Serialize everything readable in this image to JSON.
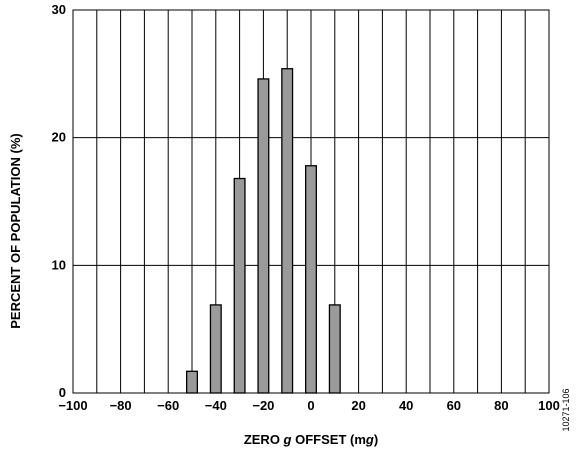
{
  "chart_data": {
    "type": "bar",
    "title": "",
    "xlabel_parts": [
      "ZERO ",
      "g",
      " OFFSET (m",
      "g",
      ")"
    ],
    "ylabel": "PERCENT OF POPULATION (%)",
    "xlim": [
      -100,
      100
    ],
    "ylim": [
      0,
      30
    ],
    "x_ticks": [
      -100,
      -80,
      -60,
      -40,
      -20,
      0,
      20,
      40,
      60,
      80,
      100
    ],
    "x_tick_labels": [
      "−100",
      "−80",
      "−60",
      "−40",
      "−20",
      "0",
      "20",
      "40",
      "60",
      "80",
      "100"
    ],
    "y_ticks": [
      0,
      10,
      20,
      30
    ],
    "y_tick_labels": [
      "0",
      "10",
      "20",
      "30"
    ],
    "x_gridline_step": 10,
    "y_gridlines": [
      10,
      20
    ],
    "grid": true,
    "bar_width_units": 4.5,
    "bar_fill": "#9a9a9a",
    "bar_stroke": "#000000",
    "x": [
      -50,
      -40,
      -30,
      -20,
      -10,
      0,
      10
    ],
    "values": [
      1.7,
      6.9,
      16.8,
      24.6,
      25.4,
      17.8,
      6.9
    ]
  },
  "figure_id": "10271-106"
}
